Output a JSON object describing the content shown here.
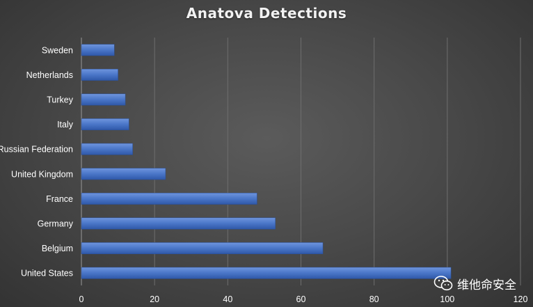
{
  "chart_data": {
    "type": "bar",
    "orientation": "horizontal",
    "title": "Anatova Detections",
    "categories": [
      "Sweden",
      "Netherlands",
      "Turkey",
      "Italy",
      "Russian Federation",
      "United Kingdom",
      "France",
      "Germany",
      "Belgium",
      "United States"
    ],
    "values": [
      9,
      10,
      12,
      13,
      14,
      23,
      48,
      53,
      66,
      101
    ],
    "xlim": [
      0,
      120
    ],
    "xticks": [
      0,
      20,
      40,
      60,
      80,
      100,
      120
    ],
    "grid": true,
    "legend": "none",
    "bar_color": "#4472c4"
  },
  "watermark": {
    "text": "维他命安全",
    "icon": "wechat-icon"
  }
}
